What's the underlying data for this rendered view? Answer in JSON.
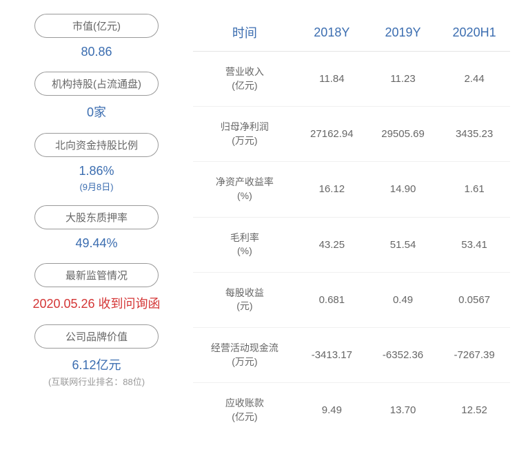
{
  "colors": {
    "blue": "#3b6db0",
    "red": "#d43535",
    "gray_text": "#666666",
    "sub_gray": "#999999"
  },
  "left_metrics": [
    {
      "label": "市值(亿元)",
      "value": "80.86",
      "value_color": "#3b6db0",
      "subtext": ""
    },
    {
      "label": "机构持股(占流通盘)",
      "value": "0家",
      "value_color": "#3b6db0",
      "subtext": ""
    },
    {
      "label": "北向资金持股比例",
      "value": "1.86%",
      "value_color": "#3b6db0",
      "subtext": "(9月8日)",
      "subtext_color": "#3b6db0"
    },
    {
      "label": "大股东质押率",
      "value": "49.44%",
      "value_color": "#3b6db0",
      "subtext": ""
    },
    {
      "label": "最新监管情况",
      "value": "2020.05.26 收到问询函",
      "value_color": "#d43535",
      "subtext": ""
    },
    {
      "label": "公司品牌价值",
      "value": "6.12亿元",
      "value_color": "#3b6db0",
      "subtext": "(互联网行业排名：88位)",
      "subtext_color": "#999999"
    }
  ],
  "table": {
    "header_color": "#3b6db0",
    "headers": [
      "时间",
      "2018Y",
      "2019Y",
      "2020H1"
    ],
    "rows": [
      {
        "label": "营业收入\n(亿元)",
        "cells": [
          "11.84",
          "11.23",
          "2.44"
        ]
      },
      {
        "label": "归母净利润\n(万元)",
        "cells": [
          "27162.94",
          "29505.69",
          "3435.23"
        ]
      },
      {
        "label": "净资产收益率\n(%)",
        "cells": [
          "16.12",
          "14.90",
          "1.61"
        ]
      },
      {
        "label": "毛利率\n(%)",
        "cells": [
          "43.25",
          "51.54",
          "53.41"
        ]
      },
      {
        "label": "每股收益\n(元)",
        "cells": [
          "0.681",
          "0.49",
          "0.0567"
        ]
      },
      {
        "label": "经营活动现金流\n(万元)",
        "cells": [
          "-3413.17",
          "-6352.36",
          "-7267.39"
        ]
      },
      {
        "label": "应收账款\n(亿元)",
        "cells": [
          "9.49",
          "13.70",
          "12.52"
        ]
      }
    ]
  }
}
